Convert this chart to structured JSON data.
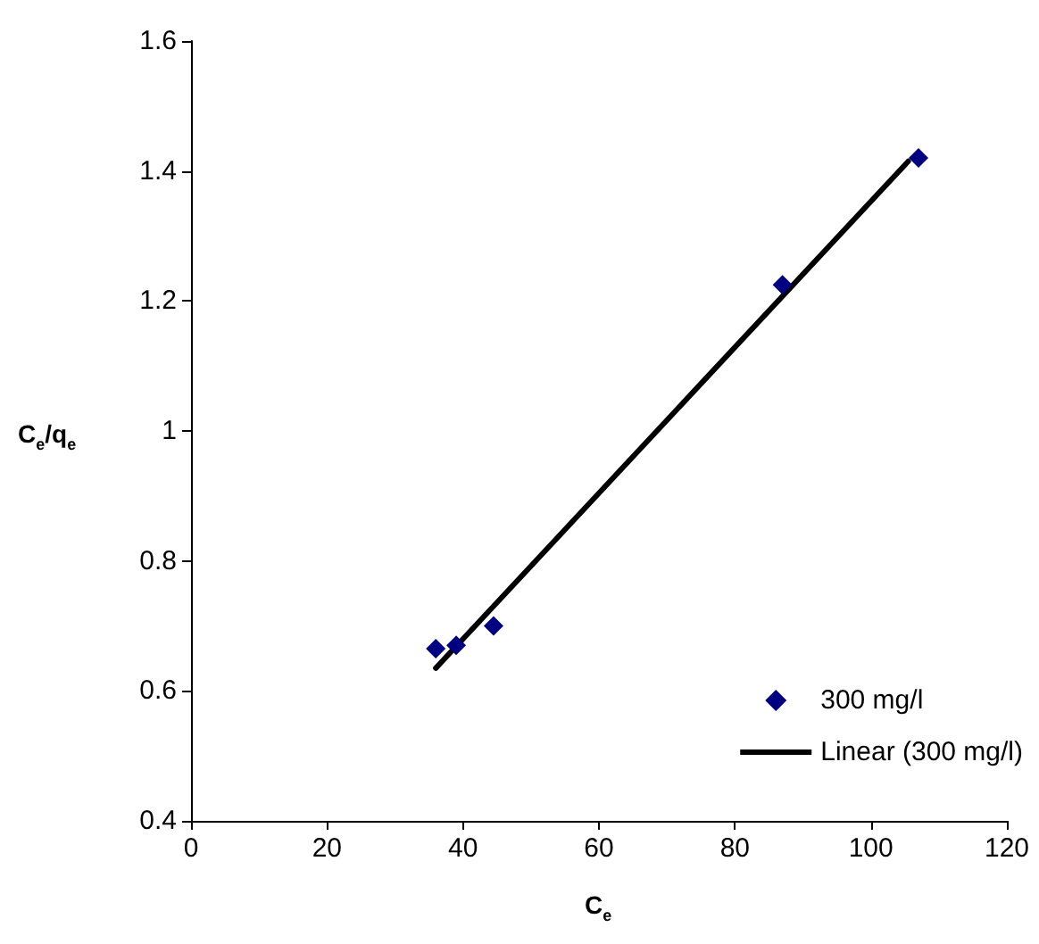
{
  "chart_data": {
    "type": "scatter",
    "xlabel": "C$_{e}$",
    "ylabel": "C$_{e}$/q$_{e}$",
    "xlim": [
      0,
      120
    ],
    "xticks": [
      0,
      20,
      40,
      60,
      80,
      100,
      120
    ],
    "ylim": [
      0.4,
      1.6
    ],
    "yticks": [
      0.4,
      0.6,
      0.8,
      1,
      1.2,
      1.4,
      1.6
    ],
    "grid": false,
    "legend": "bottom right",
    "series": [
      {
        "name": "300 mg/l",
        "type": "scatter",
        "marker": "diamond",
        "color": "#000080",
        "x": [
          36,
          39,
          44.5,
          87,
          107
        ],
        "values": [
          0.665,
          0.67,
          0.7,
          1.225,
          1.42
        ]
      },
      {
        "name": "Linear (300 mg/l)",
        "type": "line",
        "marker": "none",
        "line_style": "solid",
        "color": "#000000",
        "x": [
          36,
          105.5
        ],
        "values": [
          0.635,
          1.415
        ]
      }
    ]
  }
}
